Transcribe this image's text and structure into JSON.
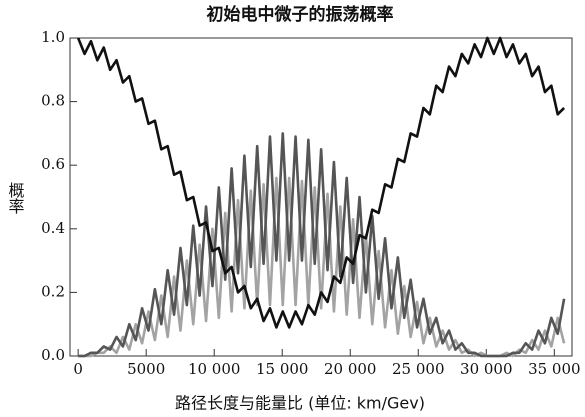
{
  "chart_data": {
    "type": "line",
    "title": "初始电中微子的振荡概率",
    "xlabel": "路径长度与能量比 (单位: km/Gev)",
    "ylabel": "概率",
    "x": [
      0,
      470,
      940,
      1410,
      1880,
      2350,
      2820,
      3290,
      3760,
      4230,
      4700,
      5170,
      5640,
      6110,
      6580,
      7050,
      7520,
      7990,
      8460,
      8930,
      9400,
      9870,
      10340,
      10810,
      11280,
      11750,
      12220,
      12690,
      13160,
      13630,
      14100,
      14570,
      15040,
      15510,
      15980,
      16450,
      16920,
      17390,
      17860,
      18330,
      18800,
      19270,
      19740,
      20210,
      20680,
      21150,
      21620,
      22090,
      22560,
      23030,
      23500,
      23970,
      24440,
      24910,
      25380,
      25850,
      26320,
      26790,
      27260,
      27730,
      28200,
      28670,
      29140,
      29610,
      30080,
      30550,
      31020,
      31490,
      31960,
      32430,
      32900,
      33370,
      33840,
      34310,
      34780,
      35250,
      35720
    ],
    "series": [
      {
        "color": "#a3a3a3",
        "values": [
          0,
          0,
          0,
          0.01,
          0.01,
          0.03,
          0.01,
          0.06,
          0.02,
          0.1,
          0.04,
          0.14,
          0.05,
          0.19,
          0.06,
          0.25,
          0.08,
          0.3,
          0.1,
          0.35,
          0.11,
          0.4,
          0.12,
          0.45,
          0.14,
          0.49,
          0.15,
          0.52,
          0.16,
          0.54,
          0.16,
          0.56,
          0.16,
          0.56,
          0.16,
          0.55,
          0.16,
          0.53,
          0.15,
          0.51,
          0.14,
          0.47,
          0.13,
          0.43,
          0.12,
          0.38,
          0.1,
          0.33,
          0.09,
          0.27,
          0.07,
          0.22,
          0.06,
          0.17,
          0.04,
          0.12,
          0.03,
          0.08,
          0.02,
          0.05,
          0.01,
          0.02,
          0,
          0.01,
          0,
          0,
          0,
          0.01,
          0,
          0.02,
          0.01,
          0.05,
          0.02,
          0.08,
          0.03,
          0.12,
          0.04
        ]
      },
      {
        "color": "#555555",
        "values": [
          0,
          0,
          0.01,
          0.01,
          0.03,
          0.02,
          0.06,
          0.03,
          0.1,
          0.05,
          0.15,
          0.08,
          0.21,
          0.1,
          0.27,
          0.13,
          0.34,
          0.16,
          0.41,
          0.19,
          0.47,
          0.22,
          0.53,
          0.24,
          0.59,
          0.26,
          0.63,
          0.28,
          0.66,
          0.29,
          0.69,
          0.3,
          0.7,
          0.3,
          0.69,
          0.3,
          0.68,
          0.29,
          0.65,
          0.27,
          0.61,
          0.25,
          0.56,
          0.23,
          0.5,
          0.2,
          0.44,
          0.18,
          0.37,
          0.15,
          0.31,
          0.12,
          0.24,
          0.09,
          0.18,
          0.07,
          0.12,
          0.04,
          0.08,
          0.02,
          0.04,
          0.01,
          0.01,
          0,
          0,
          0,
          0,
          0,
          0.01,
          0.01,
          0.04,
          0.02,
          0.08,
          0.04,
          0.12,
          0.07,
          0.18
        ]
      },
      {
        "color": "#111111",
        "values": [
          1,
          0.95,
          0.99,
          0.93,
          0.97,
          0.9,
          0.93,
          0.86,
          0.88,
          0.8,
          0.81,
          0.73,
          0.74,
          0.65,
          0.66,
          0.57,
          0.58,
          0.49,
          0.5,
          0.41,
          0.42,
          0.33,
          0.34,
          0.26,
          0.28,
          0.2,
          0.22,
          0.15,
          0.18,
          0.11,
          0.15,
          0.09,
          0.14,
          0.09,
          0.14,
          0.1,
          0.16,
          0.13,
          0.2,
          0.17,
          0.25,
          0.23,
          0.31,
          0.29,
          0.38,
          0.37,
          0.46,
          0.45,
          0.54,
          0.53,
          0.62,
          0.61,
          0.7,
          0.69,
          0.78,
          0.76,
          0.85,
          0.83,
          0.91,
          0.88,
          0.95,
          0.92,
          0.98,
          0.94,
          1,
          0.95,
          1,
          0.94,
          0.98,
          0.92,
          0.95,
          0.88,
          0.91,
          0.83,
          0.85,
          0.76,
          0.78
        ]
      }
    ],
    "xlim": [
      -600,
      36300
    ],
    "xticks": [
      0,
      5000,
      {
        "value": 10000,
        "label": "10 000"
      },
      {
        "value": 15000,
        "label": "15 000"
      },
      {
        "value": 20000,
        "label": "20 000"
      },
      {
        "value": 25000,
        "label": "25 000"
      },
      {
        "value": 30000,
        "label": "30 000"
      },
      {
        "value": 35000,
        "label": "35 000"
      }
    ],
    "ylim": [
      0,
      1
    ],
    "yticks": [
      {
        "value": 0,
        "label": "0.0"
      },
      {
        "value": 0.2,
        "label": "0.2"
      },
      {
        "value": 0.4,
        "label": "0.4"
      },
      {
        "value": 0.6,
        "label": "0.6"
      },
      {
        "value": 0.8,
        "label": "0.8"
      },
      {
        "value": 1,
        "label": "1.0"
      }
    ]
  }
}
